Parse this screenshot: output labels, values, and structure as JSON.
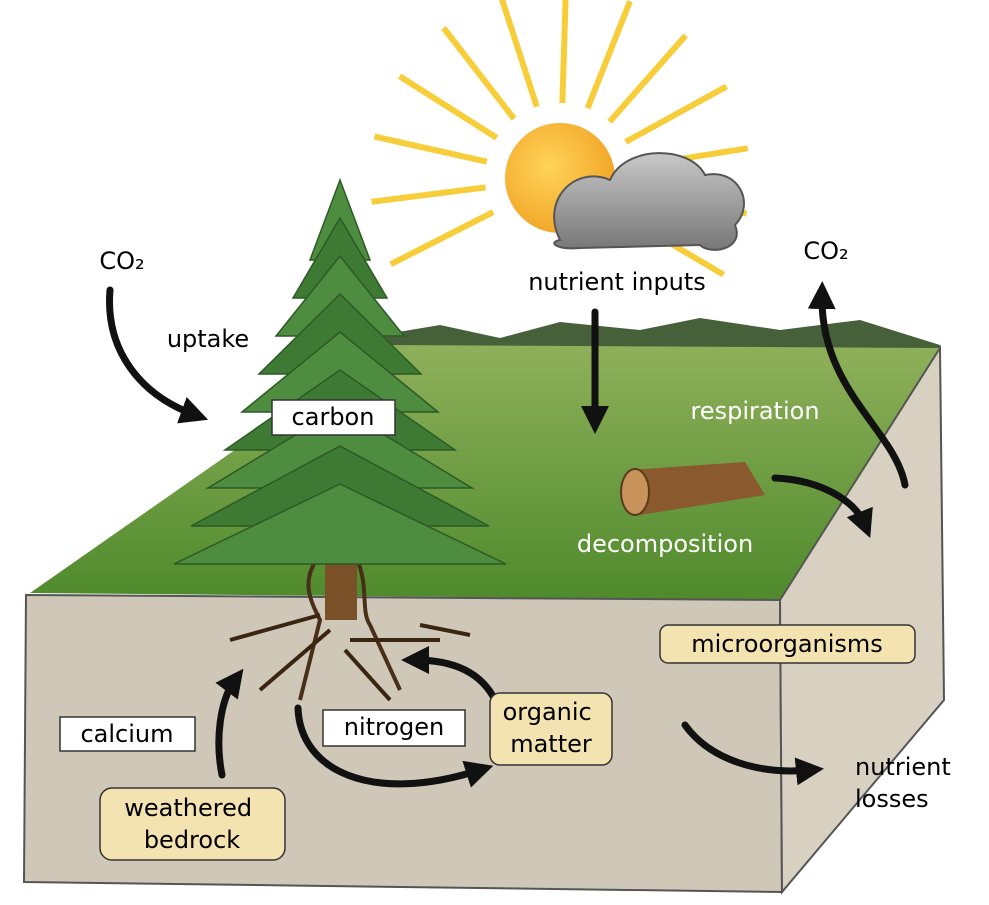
{
  "labels": {
    "co2_left": "CO₂",
    "uptake": "uptake",
    "carbon": "carbon",
    "nutrient_inputs": "nutrient inputs",
    "co2_right": "CO₂",
    "respiration": "respiration",
    "decomposition": "decomposition",
    "microorganisms": "microorganisms",
    "calcium": "calcium",
    "nitrogen": "nitrogen",
    "organic_matter": [
      "organic",
      "matter"
    ],
    "weathered_bedrock": [
      "weathered",
      "bedrock"
    ],
    "nutrient_losses": [
      "nutrient",
      "losses"
    ]
  }
}
